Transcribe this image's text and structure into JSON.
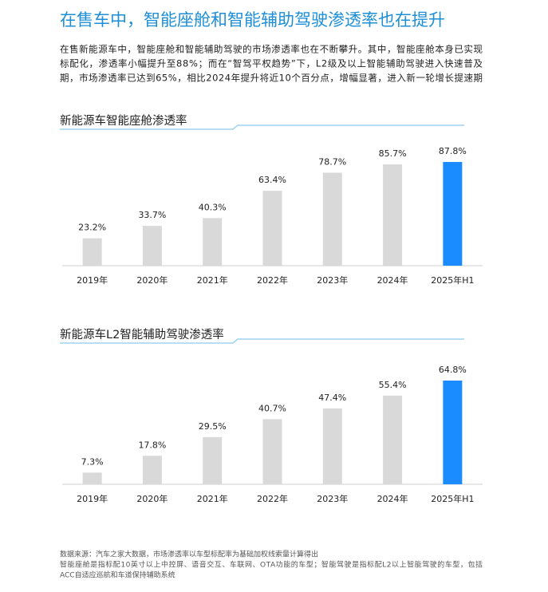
{
  "title": "在售车中，智能座舱和智能辅助驾驶渗透率也在提升",
  "intro": [
    "在售新能源车中，智能座舱和智能辅助驾驶的市场渗透率也在不断攀升。其中，智能座舱本身已实现",
    "标配化，渗透率小幅提升至88%；而在“智驾平权趋势”下，L2级及以上智能辅助驾驶进入快速普及",
    "期，市场渗透率已达到65%，相比2024年提升将近10个百分点，增幅显著，进入新一轮增长提速期"
  ],
  "chart_data": [
    {
      "type": "bar",
      "title": "新能源车智能座舱渗透率",
      "categories": [
        "2019年",
        "2020年",
        "2021年",
        "2022年",
        "2023年",
        "2024年",
        "2025年H1"
      ],
      "values": [
        23.2,
        33.7,
        40.3,
        63.4,
        78.7,
        85.7,
        87.8
      ],
      "value_labels": [
        "23.2%",
        "33.7%",
        "40.3%",
        "63.4%",
        "78.7%",
        "85.7%",
        "87.8%"
      ],
      "colors": [
        "#d9d9d9",
        "#d9d9d9",
        "#d9d9d9",
        "#d9d9d9",
        "#d9d9d9",
        "#d9d9d9",
        "#1a8cff"
      ]
    },
    {
      "type": "bar",
      "title": "新能源车L2智能辅助驾驶渗透率",
      "categories": [
        "2019年",
        "2020年",
        "2021年",
        "2022年",
        "2023年",
        "2024年",
        "2025年H1"
      ],
      "values": [
        7.3,
        17.8,
        29.5,
        40.7,
        47.4,
        55.4,
        64.8
      ],
      "value_labels": [
        "7.3%",
        "17.8%",
        "29.5%",
        "40.7%",
        "47.4%",
        "55.4%",
        "64.8%"
      ],
      "colors": [
        "#d9d9d9",
        "#d9d9d9",
        "#d9d9d9",
        "#d9d9d9",
        "#d9d9d9",
        "#d9d9d9",
        "#1a8cff"
      ]
    }
  ],
  "notes": [
    "数据来源：汽车之家大数据，市场渗透率以车型标配率为基础加权线索量计算得出",
    "智能座舱是指标配10英寸以上中控屏、语音交互、车联网、OTA功能的车型；智能驾驶是指标配L2以上智能驾驶的车型，包括",
    "ACC自适应巡航和车道保持辅助系统"
  ]
}
